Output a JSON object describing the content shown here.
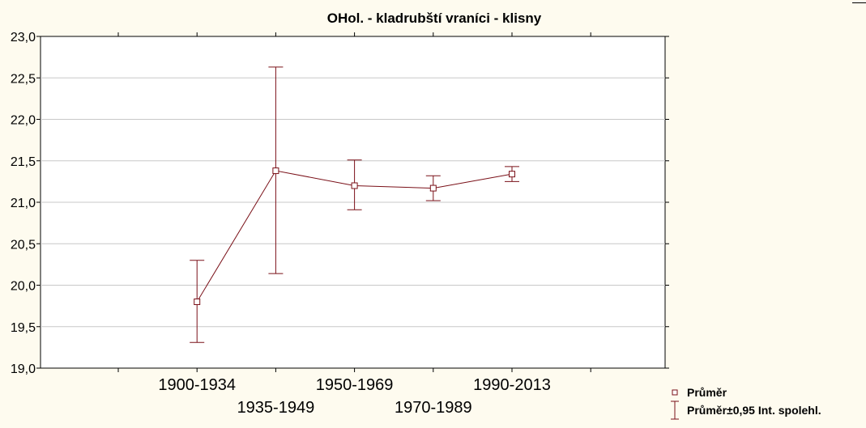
{
  "chart_data": {
    "type": "line",
    "title": "OHol. - kladrubští vraníci - klisny",
    "xlabel": "",
    "ylabel": "",
    "categories": [
      "1900-1934",
      "1935-1949",
      "1950-1969",
      "1970-1989",
      "1990-2013"
    ],
    "series": [
      {
        "name": "Průměr",
        "values": [
          19.8,
          21.38,
          21.2,
          21.17,
          21.34
        ],
        "ci_lower": [
          19.31,
          20.14,
          20.91,
          21.02,
          21.25
        ],
        "ci_upper": [
          20.3,
          22.63,
          21.51,
          21.32,
          21.43
        ]
      }
    ],
    "error_bar_label": "Průměr±0,95 Int. spolehl.",
    "ylim": [
      19.0,
      23.0
    ],
    "yticks": [
      "19,0",
      "19,5",
      "20,0",
      "20,5",
      "21,0",
      "21,5",
      "22,0",
      "22,5",
      "23,0"
    ],
    "grid": true,
    "legend_position": "bottom-right",
    "colors": {
      "background": "#fefbef",
      "plot_area": "#ffffff",
      "series": "#7a1018",
      "grid": "#c8c8c8",
      "axis": "#000000"
    }
  }
}
